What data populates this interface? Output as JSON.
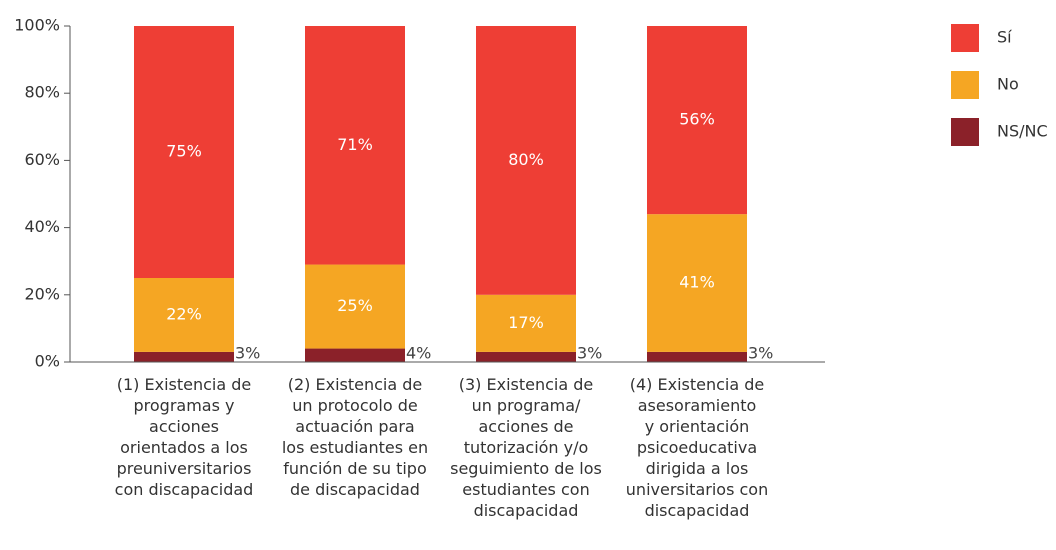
{
  "chart_data": {
    "type": "stacked_bar",
    "categories": [
      "(1) Existencia de\nprogramas y\nacciones\norientados a los\npreuniversitarios\ncon discapacidad",
      "(2) Existencia de\nun protocolo de\nactuación para\nlos estudiantes en\nfunción de su tipo\nde discapacidad",
      "(3) Existencia de\nun programa/\nacciones de\ntutorización y/o\nseguimiento de los\nestudiantes con\ndiscapacidad",
      "(4) Existencia de\nasesoramiento\ny orientación\npsicoeducativa\ndirigida a los\nuniversitarios con\ndiscapacidad"
    ],
    "series": [
      {
        "name": "Sí",
        "color": "#ee3e35",
        "values": [
          75,
          71,
          80,
          56
        ],
        "value_labels": [
          "75%",
          "71%",
          "80%",
          "56%"
        ]
      },
      {
        "name": "No",
        "color": "#f5a623",
        "values": [
          22,
          25,
          17,
          41
        ],
        "value_labels": [
          "22%",
          "25%",
          "17%",
          "41%"
        ]
      },
      {
        "name": "NS/NC",
        "color": "#8b2129",
        "values": [
          3,
          4,
          3,
          3
        ],
        "value_labels": [
          "3%",
          "4%",
          "3%",
          "3%"
        ]
      }
    ],
    "ylim": [
      0,
      100
    ],
    "yticks": [
      {
        "value": 0,
        "label": "0%"
      },
      {
        "value": 20,
        "label": "20%"
      },
      {
        "value": 40,
        "label": "40%"
      },
      {
        "value": 60,
        "label": "60%"
      },
      {
        "value": 80,
        "label": "80%"
      },
      {
        "value": 100,
        "label": "100%"
      }
    ],
    "legend": "top-right"
  }
}
